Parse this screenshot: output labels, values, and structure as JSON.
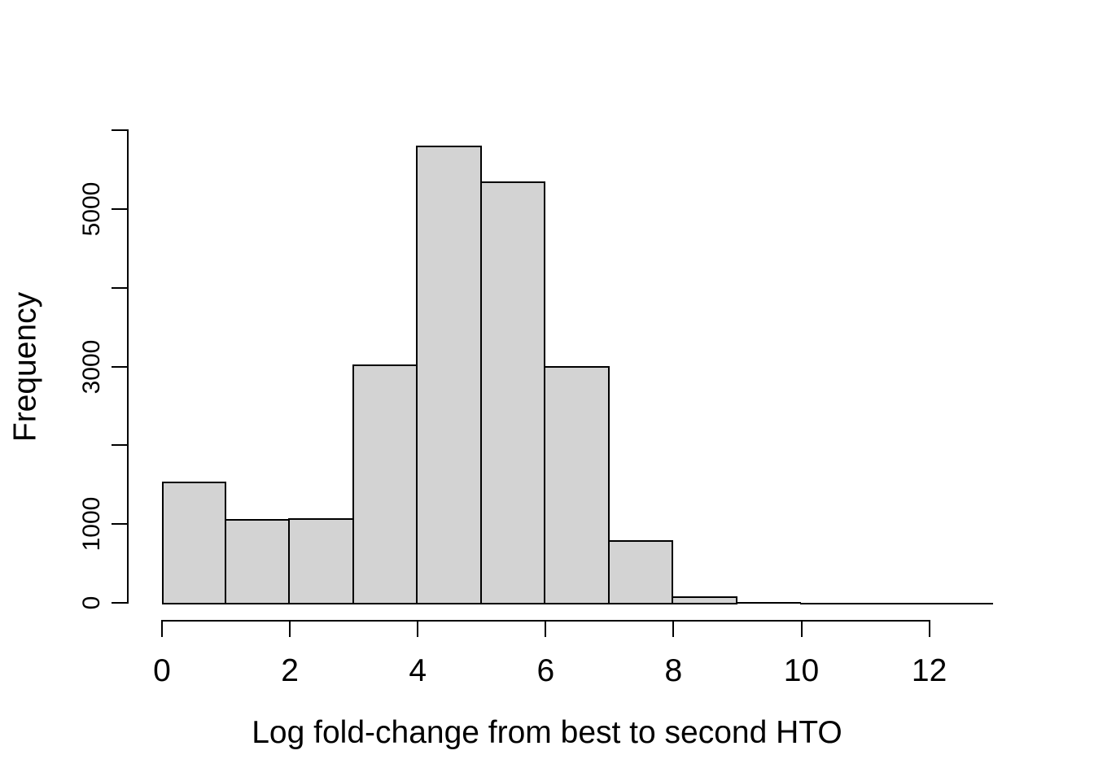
{
  "chart_data": {
    "type": "bar",
    "subtype": "histogram",
    "title": "",
    "xlabel": "Log fold-change from best to second HTO",
    "ylabel": "Frequency",
    "bin_edges": [
      0,
      1,
      2,
      3,
      4,
      5,
      6,
      7,
      8,
      9,
      10,
      11,
      12,
      13
    ],
    "values": [
      1540,
      1060,
      1070,
      3030,
      5800,
      5350,
      3010,
      800,
      80,
      15,
      5,
      2,
      1
    ],
    "xlim": [
      0,
      13
    ],
    "ylim": [
      0,
      6000
    ],
    "x_ticks": [
      0,
      2,
      4,
      6,
      8,
      10,
      12
    ],
    "x_tick_labels": [
      "0",
      "2",
      "4",
      "6",
      "8",
      "10",
      "12"
    ],
    "y_ticks": [
      0,
      1000,
      2000,
      3000,
      4000,
      5000,
      6000
    ],
    "y_labeled_ticks": [
      0,
      1000,
      3000,
      5000
    ],
    "y_labeled_tick_labels": [
      "0",
      "1000",
      "3000",
      "5000"
    ],
    "grid": false,
    "legend": false,
    "bar_fill": "#d3d3d3",
    "bar_stroke": "#000000",
    "text_color": "#000000",
    "background": "#ffffff"
  }
}
